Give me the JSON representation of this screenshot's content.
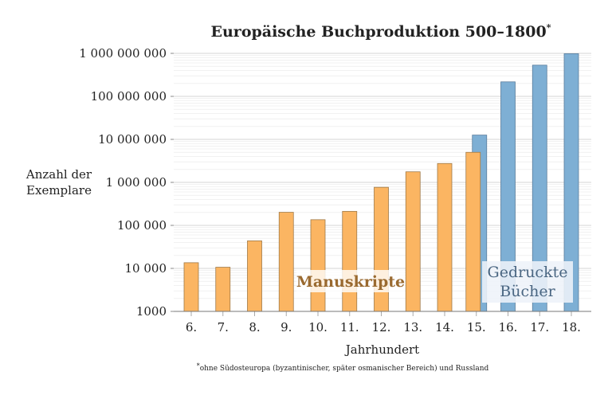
{
  "chart_data": {
    "type": "bar",
    "title": "Europäische Buchproduktion 500–1800",
    "title_marker": "*",
    "xlabel": "Jahrhundert",
    "ylabel": [
      "Anzahl der",
      "Exemplare"
    ],
    "footnote_marker": "*",
    "footnote": "ohne Südosteuropa (byzantinischer, später osmanischer Bereich) und Russland",
    "categories": [
      "6.",
      "7.",
      "8.",
      "9.",
      "10.",
      "11.",
      "12.",
      "13.",
      "14.",
      "15.",
      "16.",
      "17.",
      "18."
    ],
    "y_scale": "log",
    "ylim": [
      1000,
      1000000000
    ],
    "yticks": [
      1000,
      10000,
      100000,
      1000000,
      10000000,
      100000000,
      1000000000
    ],
    "ytick_labels": [
      "1000",
      "10 000",
      "100 000",
      "1 000 000",
      "10 000 000",
      "100 000 000",
      "1 000 000 000"
    ],
    "grid": true,
    "series": [
      {
        "name": "Manuskripte",
        "color": "#fbb562",
        "values": [
          13552,
          10639,
          43702,
          201742,
          135637,
          212030,
          768721,
          1761951,
          2746951,
          4999161,
          null,
          null,
          null
        ]
      },
      {
        "name": "Gedruckte Bücher",
        "color": "#7eafd4",
        "values": [
          null,
          null,
          null,
          null,
          null,
          null,
          null,
          null,
          null,
          12589000,
          217444000,
          531941000,
          983874000
        ]
      }
    ],
    "series_label_lines": {
      "printed": [
        "Gedruckte",
        "Bücher"
      ]
    }
  }
}
